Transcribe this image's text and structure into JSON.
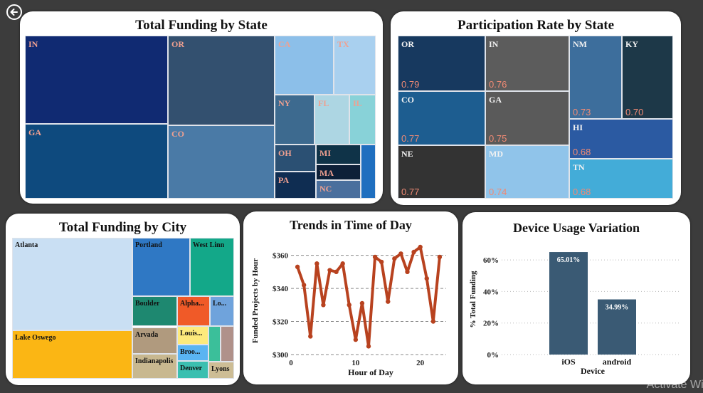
{
  "watermark": "Activate Wir",
  "icons": {
    "back": "back-arrow-icon"
  },
  "colors": {
    "page_bg": "#3c3c3c",
    "line": "#b8421f",
    "bar": "#3a5a74"
  },
  "state_funding": {
    "title": "Total Funding by State",
    "tiles": [
      {
        "name": "tile-in",
        "label": "IN",
        "color": "#102a72",
        "label_color": "#f0a090"
      },
      {
        "name": "tile-or",
        "label": "OR",
        "color": "#33506f",
        "label_color": "#f0a090"
      },
      {
        "name": "tile-ga",
        "label": "GA",
        "color": "#0e4a7e",
        "label_color": "#f0a090"
      },
      {
        "name": "tile-co",
        "label": "CO",
        "color": "#4a7aa6",
        "label_color": "#f0a090"
      },
      {
        "name": "tile-ca",
        "label": "CA",
        "color": "#8cbfe9",
        "label_color": "#f0a090"
      },
      {
        "name": "tile-tx",
        "label": "TX",
        "color": "#a9d0ef",
        "label_color": "#f0a090"
      },
      {
        "name": "tile-ny",
        "label": "NY",
        "color": "#3d6a8f",
        "label_color": "#f0a090"
      },
      {
        "name": "tile-fl",
        "label": "FL",
        "color": "#add6e3",
        "label_color": "#f0a090"
      },
      {
        "name": "tile-il",
        "label": "IL",
        "color": "#88d2d8",
        "label_color": "#f0a090"
      },
      {
        "name": "tile-oh",
        "label": "OH",
        "color": "#2b5073",
        "label_color": "#f0a090"
      },
      {
        "name": "tile-mi",
        "label": "MI",
        "color": "#0f3348",
        "label_color": "#f0a090"
      },
      {
        "name": "tile-blue",
        "label": "",
        "color": "#1f6fbf",
        "label_color": "#f0a090"
      },
      {
        "name": "tile-ma",
        "label": "MA",
        "color": "#0d2038",
        "label_color": "#f0a090"
      },
      {
        "name": "tile-pa",
        "label": "PA",
        "color": "#0f2d52",
        "label_color": "#f0a090"
      },
      {
        "name": "tile-nc",
        "label": "NC",
        "color": "#4a6f9d",
        "label_color": "#f0a090"
      }
    ]
  },
  "participation": {
    "title": "Participation Rate by State",
    "tiles": [
      {
        "name": "ptile-or",
        "label": "OR",
        "value": "0.79",
        "color": "#17395f"
      },
      {
        "name": "ptile-in",
        "label": "IN",
        "value": "0.76",
        "color": "#5c5c5c"
      },
      {
        "name": "ptile-nm",
        "label": "NM",
        "value": "0.73",
        "color": "#3d6e9c"
      },
      {
        "name": "ptile-ky",
        "label": "KY",
        "value": "0.70",
        "color": "#1d3848"
      },
      {
        "name": "ptile-co",
        "label": "CO",
        "value": "0.77",
        "color": "#1d5d90"
      },
      {
        "name": "ptile-ga",
        "label": "GA",
        "value": "0.75",
        "color": "#5a5a5a"
      },
      {
        "name": "ptile-hi",
        "label": "HI",
        "value": "0.68",
        "color": "#2b5aa2"
      },
      {
        "name": "ptile-ne",
        "label": "NE",
        "value": "0.77",
        "color": "#333333"
      },
      {
        "name": "ptile-md",
        "label": "MD",
        "value": "0.74",
        "color": "#90c4ea"
      },
      {
        "name": "ptile-tn",
        "label": "TN",
        "value": "0.68",
        "color": "#43acd8"
      }
    ]
  },
  "city_funding": {
    "title": "Total Funding by City",
    "tiles": [
      {
        "name": "ctile-atlanta",
        "label": "Atlanta",
        "color": "#c9dff3"
      },
      {
        "name": "ctile-portland",
        "label": "Portland",
        "color": "#2f78c4"
      },
      {
        "name": "ctile-westlinn",
        "label": "West Linn",
        "color": "#13a889"
      },
      {
        "name": "ctile-boulder",
        "label": "Boulder",
        "color": "#1e8870"
      },
      {
        "name": "ctile-alpha",
        "label": "Alpha...",
        "color": "#f05a28"
      },
      {
        "name": "ctile-lo",
        "label": "Lo...",
        "color": "#6fa3dc"
      },
      {
        "name": "ctile-lakeoswego",
        "label": "Lake Oswego",
        "color": "#fbb614"
      },
      {
        "name": "ctile-arvada",
        "label": "Arvada",
        "color": "#b09a7e"
      },
      {
        "name": "ctile-louis",
        "label": "Louis...",
        "color": "#fdea7c"
      },
      {
        "name": "ctile-teal",
        "label": "",
        "color": "#3bbf9a"
      },
      {
        "name": "ctile-brown",
        "label": "",
        "color": "#b0918a"
      },
      {
        "name": "ctile-broo",
        "label": "Broo...",
        "color": "#5ab4f2"
      },
      {
        "name": "ctile-indianapolis",
        "label": "Indianapolis",
        "color": "#c8b890"
      },
      {
        "name": "ctile-denver",
        "label": "Denver",
        "color": "#3bbfb0"
      },
      {
        "name": "ctile-lyons",
        "label": "Lyons",
        "color": "#cdbd95"
      }
    ]
  },
  "trends": {
    "title": "Trends in Time of Day",
    "chart_data": {
      "type": "line",
      "title": "Trends in Time of Day",
      "xlabel": "Hour of Day",
      "ylabel": "Funded Projects by Hour",
      "x": [
        1,
        2,
        3,
        4,
        5,
        6,
        7,
        8,
        9,
        10,
        11,
        12,
        13,
        14,
        15,
        16,
        17,
        18,
        19,
        20,
        21,
        22,
        23
      ],
      "values": [
        353,
        342,
        311,
        355,
        330,
        351,
        350,
        355,
        330,
        309,
        331,
        305,
        359,
        356,
        332,
        358,
        361,
        350,
        362,
        365,
        346,
        320,
        359
      ],
      "xlim": [
        0,
        24
      ],
      "ylim": [
        300,
        365
      ],
      "xticks": [
        0,
        10,
        20
      ],
      "xtick_labels": [
        "0",
        "10",
        "20"
      ],
      "yticks": [
        300,
        320,
        340,
        360
      ],
      "ytick_labels": [
        "$300",
        "$320",
        "$340",
        "$360"
      ],
      "grid": true
    }
  },
  "device": {
    "title": "Device Usage Variation",
    "chart_data": {
      "type": "bar",
      "title": "Device Usage Variation",
      "xlabel": "Device",
      "ylabel": "% Total Funding",
      "categories": [
        "iOS",
        "android"
      ],
      "values": [
        65.01,
        34.99
      ],
      "data_labels": [
        "65.01%",
        "34.99%"
      ],
      "ylim": [
        0,
        70
      ],
      "yticks": [
        0,
        20,
        40,
        60
      ],
      "ytick_labels": [
        "0%",
        "20%",
        "40%",
        "60%"
      ],
      "grid": true
    }
  }
}
